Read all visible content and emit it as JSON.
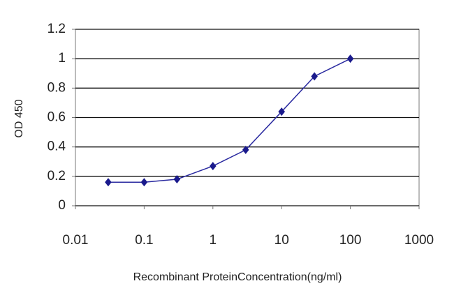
{
  "chart_data": {
    "type": "line",
    "x": [
      0.03,
      0.1,
      0.3,
      1,
      3,
      10,
      30,
      100
    ],
    "values": [
      0.16,
      0.16,
      0.18,
      0.27,
      0.38,
      0.64,
      0.88,
      1.0
    ],
    "color": "#2a2aa0",
    "marker_color": "#1a1a8c",
    "xlabel": "Recombinant ProteinConcentration(ng/ml)",
    "ylabel": "OD 450",
    "xscale": "log",
    "xlim": [
      0.01,
      1000
    ],
    "xticks": [
      0.01,
      0.1,
      1,
      10,
      100,
      1000
    ],
    "ylim": [
      0,
      1.2
    ],
    "yticks": [
      0,
      0.2,
      0.4,
      0.6,
      0.8,
      1,
      1.2
    ],
    "grid": true
  }
}
